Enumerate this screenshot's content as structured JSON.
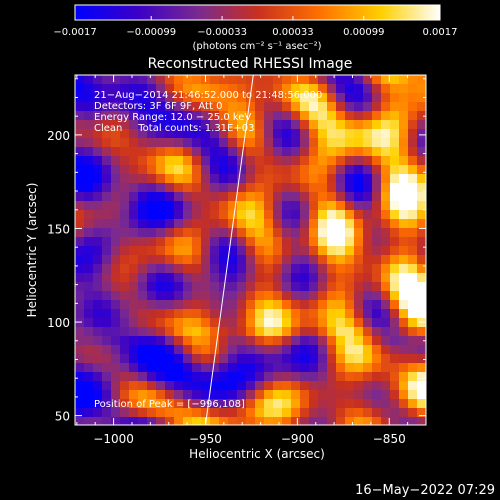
{
  "chart_data": {
    "type": "heatmap",
    "title": "Reconstructed RHESSI Image",
    "xlabel": "Heliocentric X (arcsec)",
    "ylabel": "Heliocentric Y (arcsec)",
    "xlim": [
      -1021,
      -830
    ],
    "ylim": [
      45,
      232
    ],
    "x_ticks": [
      -1000,
      -950,
      -900,
      -850
    ],
    "x_tick_labels": [
      "−1000",
      "−950",
      "−900",
      "−850"
    ],
    "y_ticks": [
      50,
      100,
      150,
      200
    ],
    "y_tick_labels": [
      "50",
      "100",
      "150",
      "200"
    ],
    "colorbar": {
      "range": [
        -0.0017,
        0.0017
      ],
      "ticks": [
        -0.0017,
        -0.00099,
        -0.00033,
        0.00033,
        0.00099,
        0.0017
      ],
      "tick_labels": [
        "−0.0017",
        "−0.00099",
        "−0.00033",
        "0.00033",
        "0.00099",
        "0.0017"
      ],
      "unit_label": "(photons cm⁻² s⁻¹ asec⁻²)",
      "colors": [
        "#0000ff",
        "#3a00c8",
        "#7a2a90",
        "#c83020",
        "#ff7000",
        "#ffd000",
        "#ffffff"
      ]
    },
    "info_lines": [
      "21−Aug−2014 21:46:52.000 to 21:48:56.000",
      "Detectors: 3F 6F 9F, Att 0",
      "Energy Range: 12.0 − 25.0 keV",
      "Clean     Total counts: 1.31E+03"
    ],
    "peak_text": "Position of Peak = [−996,108]",
    "limb_line": {
      "x1": -950,
      "y1": 45,
      "x2": -924,
      "y2": 232
    },
    "grid": false
  },
  "footer": {
    "timestamp": "16−May−2022 07:29"
  }
}
